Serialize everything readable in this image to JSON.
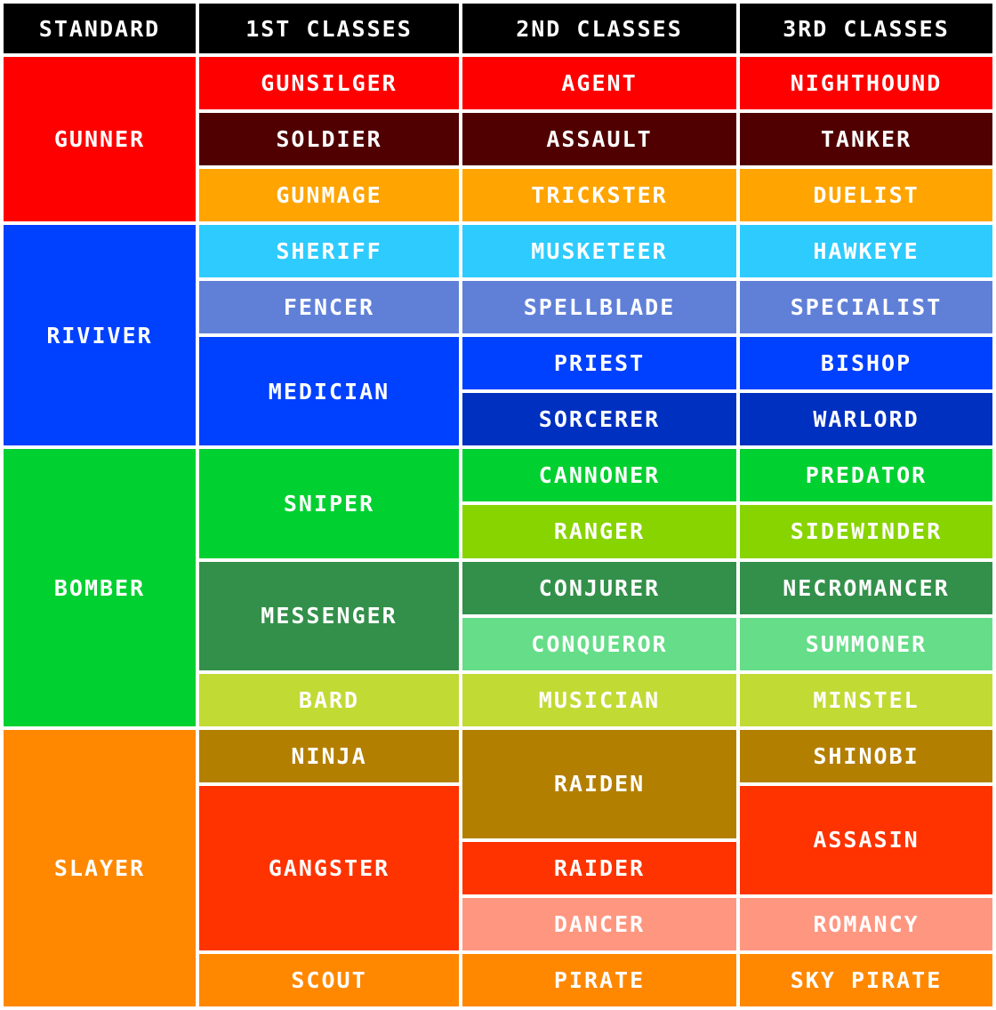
{
  "headers": [
    "STANDARD",
    "1ST CLASSES",
    "2ND CLASSES",
    "3RD CLASSES"
  ],
  "colors": {
    "header": "#000000",
    "red": "#ff0000",
    "maroon": "#500000",
    "amber": "#ffa400",
    "sky": "#2ecbff",
    "periwinkle": "#6080d8",
    "blue": "#0040ff",
    "navy": "#0030c0",
    "green": "#00d030",
    "lime": "#88d400",
    "forest": "#33904a",
    "mint": "#66dd88",
    "olive_lime": "#c2da34",
    "orange": "#ff8800",
    "bronze": "#b37f00",
    "vermilion": "#ff3300",
    "salmon": "#ff9680"
  },
  "standard": [
    {
      "label": "GUNNER",
      "color": "#ff0000"
    },
    {
      "label": "RIVIVER",
      "color": "#0040ff"
    },
    {
      "label": "BOMBER",
      "color": "#00d030"
    },
    {
      "label": "SLAYER",
      "color": "#ff8800"
    }
  ],
  "first": [
    {
      "label": "GUNSILGER",
      "color": "#ff0000"
    },
    {
      "label": "SOLDIER",
      "color": "#500000"
    },
    {
      "label": "GUNMAGE",
      "color": "#ffa400"
    },
    {
      "label": "SHERIFF",
      "color": "#2ecbff"
    },
    {
      "label": "FENCER",
      "color": "#6080d8"
    },
    {
      "label": "MEDICIAN",
      "color": "#0040ff"
    },
    {
      "label": "SNIPER",
      "color": "#00d030"
    },
    {
      "label": "MESSENGER",
      "color": "#33904a"
    },
    {
      "label": "BARD",
      "color": "#c2da34"
    },
    {
      "label": "NINJA",
      "color": "#b37f00"
    },
    {
      "label": "GANGSTER",
      "color": "#ff3300"
    },
    {
      "label": "SCOUT",
      "color": "#ff8800"
    }
  ],
  "second": [
    {
      "label": "AGENT",
      "color": "#ff0000"
    },
    {
      "label": "ASSAULT",
      "color": "#500000"
    },
    {
      "label": "TRICKSTER",
      "color": "#ffa400"
    },
    {
      "label": "MUSKETEER",
      "color": "#2ecbff"
    },
    {
      "label": "SPELLBLADE",
      "color": "#6080d8"
    },
    {
      "label": "PRIEST",
      "color": "#0040ff"
    },
    {
      "label": "SORCERER",
      "color": "#0030c0"
    },
    {
      "label": "CANNONER",
      "color": "#00d030"
    },
    {
      "label": "RANGER",
      "color": "#88d400"
    },
    {
      "label": "CONJURER",
      "color": "#33904a"
    },
    {
      "label": "CONQUEROR",
      "color": "#66dd88"
    },
    {
      "label": "MUSICIAN",
      "color": "#c2da34"
    },
    {
      "label": "RAIDEN",
      "color": "#b37f00"
    },
    {
      "label": "RAIDER",
      "color": "#ff3300"
    },
    {
      "label": "DANCER",
      "color": "#ff9680"
    },
    {
      "label": "PIRATE",
      "color": "#ff8800"
    }
  ],
  "third": [
    {
      "label": "NIGHTHOUND",
      "color": "#ff0000"
    },
    {
      "label": "TANKER",
      "color": "#500000"
    },
    {
      "label": "DUELIST",
      "color": "#ffa400"
    },
    {
      "label": "HAWKEYE",
      "color": "#2ecbff"
    },
    {
      "label": "SPECIALIST",
      "color": "#6080d8"
    },
    {
      "label": "BISHOP",
      "color": "#0040ff"
    },
    {
      "label": "WARLORD",
      "color": "#0030c0"
    },
    {
      "label": "PREDATOR",
      "color": "#00d030"
    },
    {
      "label": "SIDEWINDER",
      "color": "#88d400"
    },
    {
      "label": "NECROMANCER",
      "color": "#33904a"
    },
    {
      "label": "SUMMONER",
      "color": "#66dd88"
    },
    {
      "label": "MINSTEL",
      "color": "#c2da34"
    },
    {
      "label": "SHINOBI",
      "color": "#b37f00"
    },
    {
      "label": "ASSASIN",
      "color": "#ff3300"
    },
    {
      "label": "ROMANCY",
      "color": "#ff9680"
    },
    {
      "label": "SKY PIRATE",
      "color": "#ff8800"
    }
  ]
}
